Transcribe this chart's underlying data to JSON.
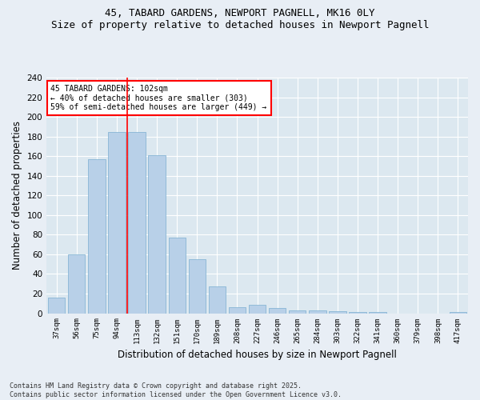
{
  "title": "45, TABARD GARDENS, NEWPORT PAGNELL, MK16 0LY",
  "subtitle": "Size of property relative to detached houses in Newport Pagnell",
  "xlabel": "Distribution of detached houses by size in Newport Pagnell",
  "ylabel": "Number of detached properties",
  "bar_color": "#b8d0e8",
  "bar_edge_color": "#7aaed0",
  "background_color": "#dce8f0",
  "grid_color": "#ffffff",
  "fig_background": "#e8eef5",
  "categories": [
    "37sqm",
    "56sqm",
    "75sqm",
    "94sqm",
    "113sqm",
    "132sqm",
    "151sqm",
    "170sqm",
    "189sqm",
    "208sqm",
    "227sqm",
    "246sqm",
    "265sqm",
    "284sqm",
    "303sqm",
    "322sqm",
    "341sqm",
    "360sqm",
    "379sqm",
    "398sqm",
    "417sqm"
  ],
  "values": [
    16,
    60,
    157,
    185,
    185,
    161,
    77,
    55,
    27,
    6,
    9,
    5,
    3,
    3,
    2,
    1,
    1,
    0,
    0,
    0,
    1
  ],
  "red_line_x": 3.5,
  "annotation_text": "45 TABARD GARDENS: 102sqm\n← 40% of detached houses are smaller (303)\n59% of semi-detached houses are larger (449) →",
  "footer": "Contains HM Land Registry data © Crown copyright and database right 2025.\nContains public sector information licensed under the Open Government Licence v3.0.",
  "ylim": [
    0,
    240
  ],
  "yticks": [
    0,
    20,
    40,
    60,
    80,
    100,
    120,
    140,
    160,
    180,
    200,
    220,
    240
  ]
}
